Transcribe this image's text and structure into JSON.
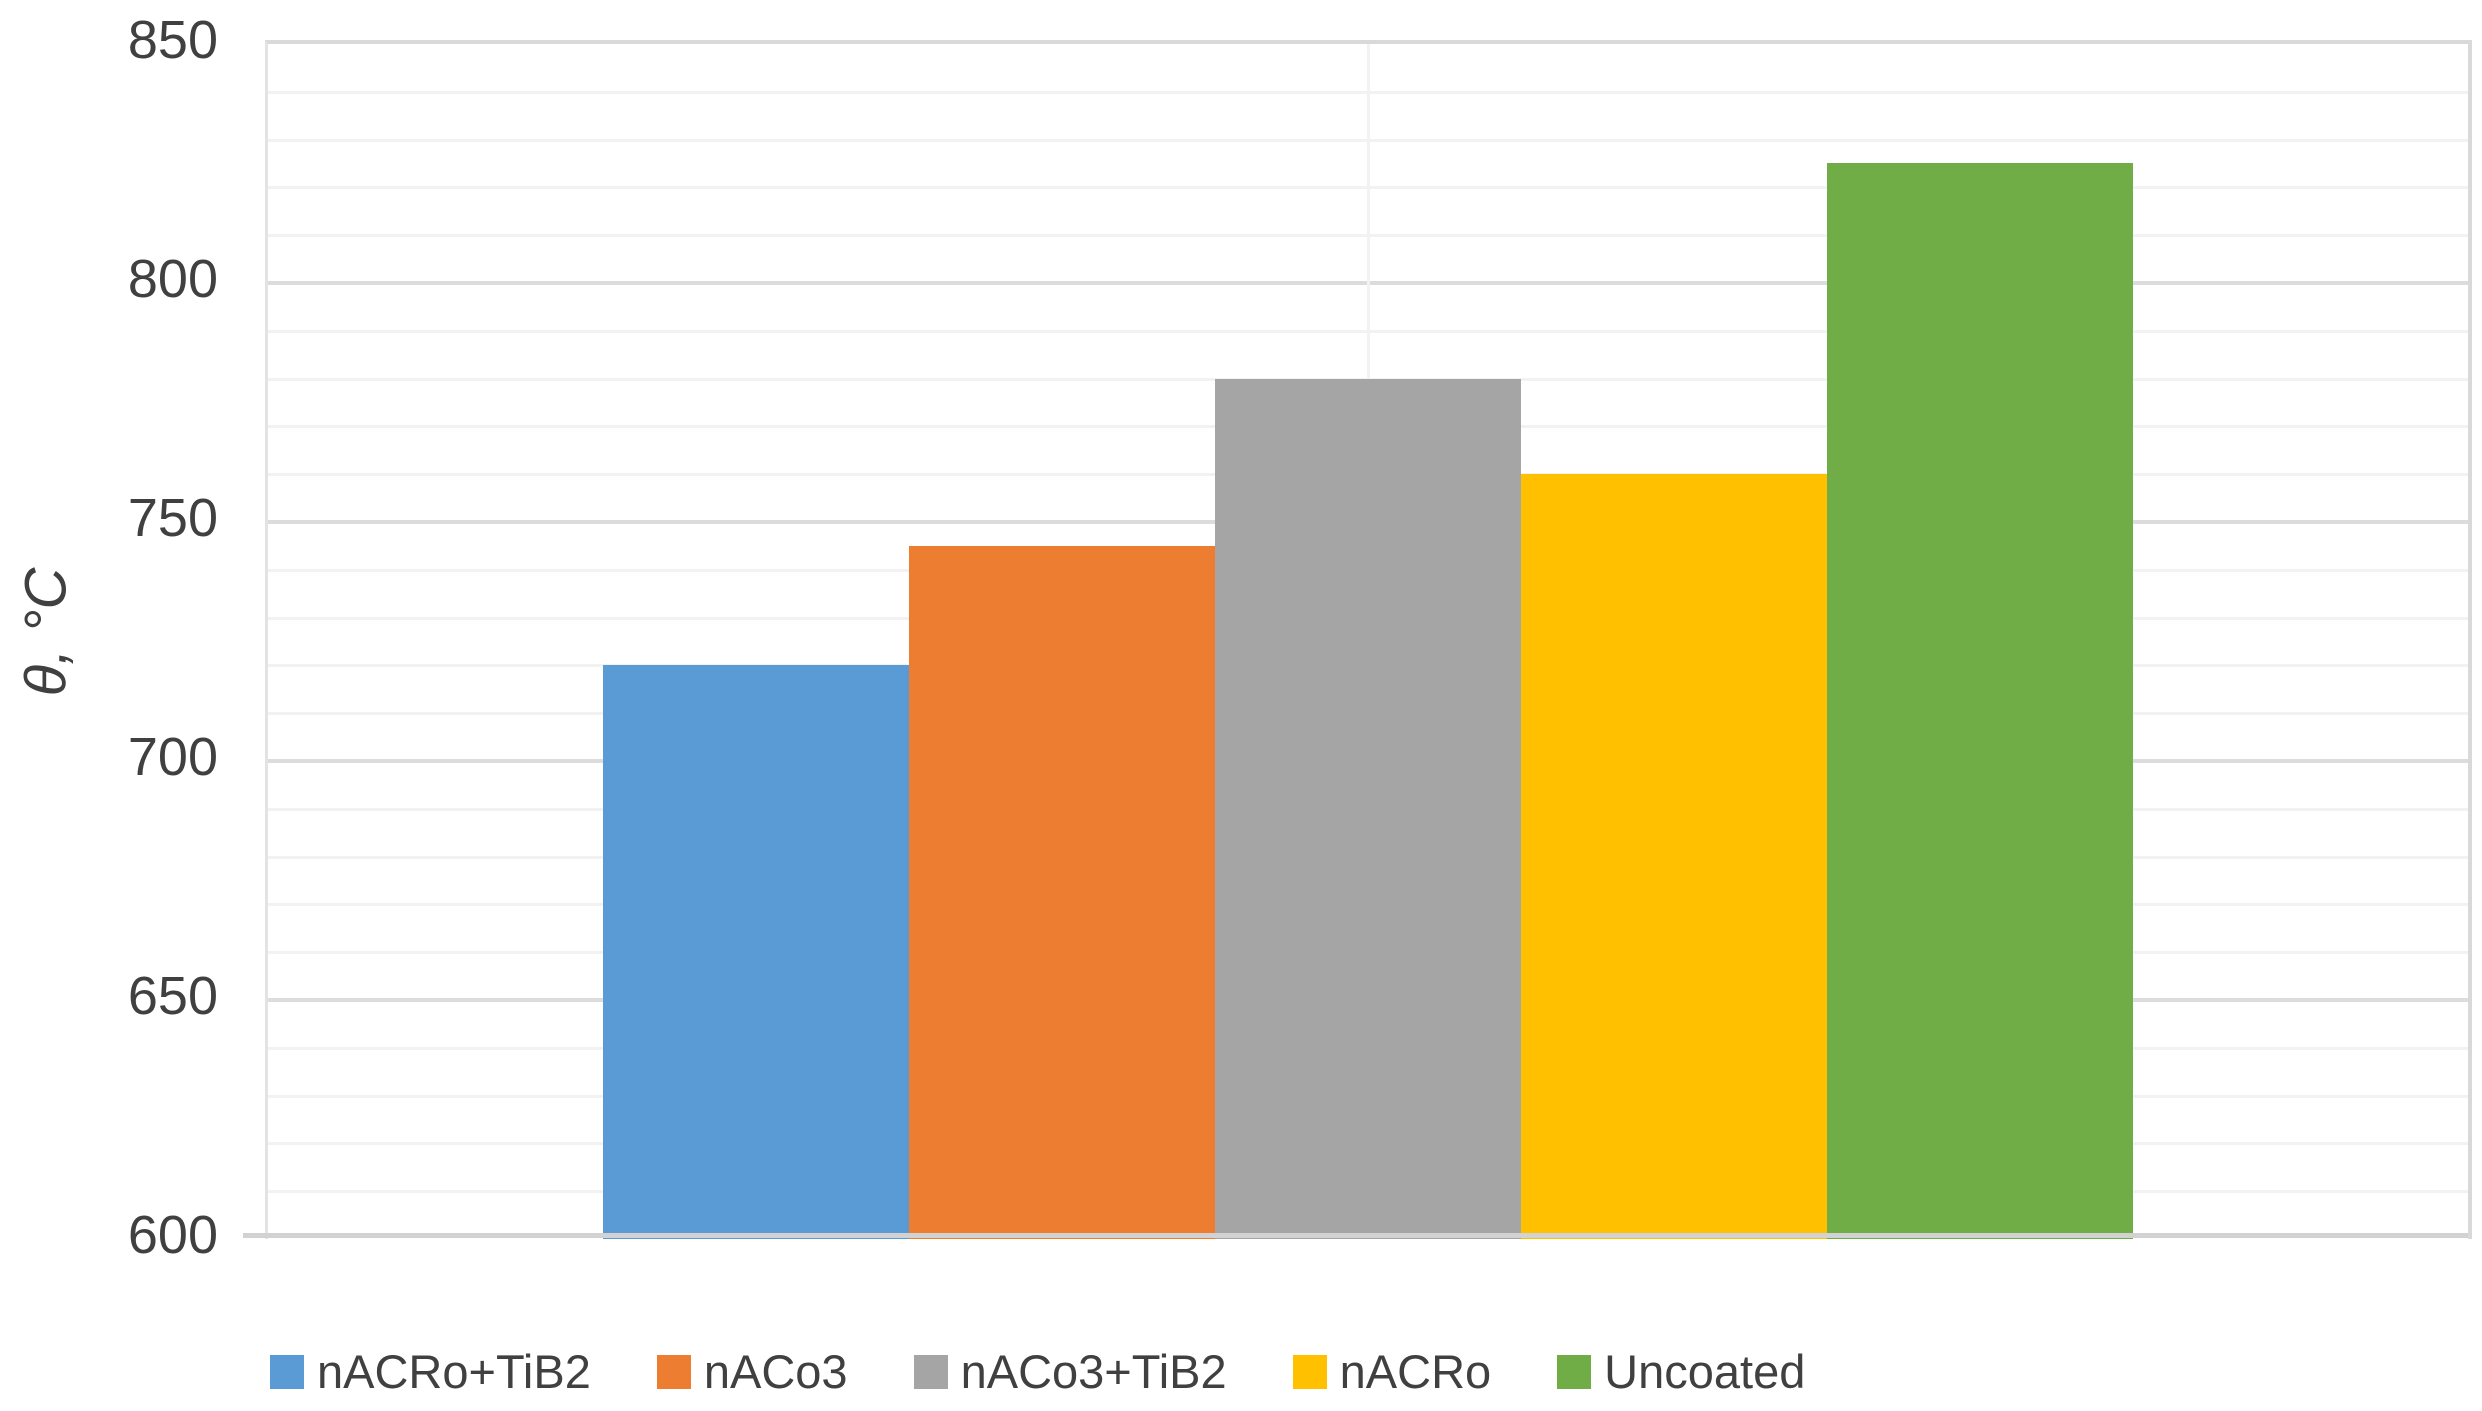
{
  "chart_data": {
    "type": "bar",
    "title": "",
    "xlabel": "",
    "ylabel": "θ, °C",
    "ylim": [
      600,
      850
    ],
    "yticks": [
      600,
      650,
      700,
      750,
      800,
      850
    ],
    "ytick_interval_major": 50,
    "ytick_interval_minor": 10,
    "grid": "horizontal major and minor gridlines, single faint vertical gridline at plot center",
    "legend_position": "bottom",
    "categories": [
      ""
    ],
    "series": [
      {
        "name": "nACRo+TiB2",
        "value": 720,
        "color": "#5B9BD5"
      },
      {
        "name": "nACo3",
        "value": 745,
        "color": "#ED7D31"
      },
      {
        "name": "nACo3+TiB2",
        "value": 780,
        "color": "#A5A5A5"
      },
      {
        "name": "nACRo",
        "value": 760,
        "color": "#FFC000"
      },
      {
        "name": "Uncoated",
        "value": 825,
        "color": "#70AD47"
      }
    ],
    "colors": {
      "axis_text": "#404040",
      "gridline_minor": "#f2f2f2",
      "gridline_major": "#dcdcdc",
      "axis_line": "#d2d2d2",
      "background": "#ffffff"
    }
  }
}
